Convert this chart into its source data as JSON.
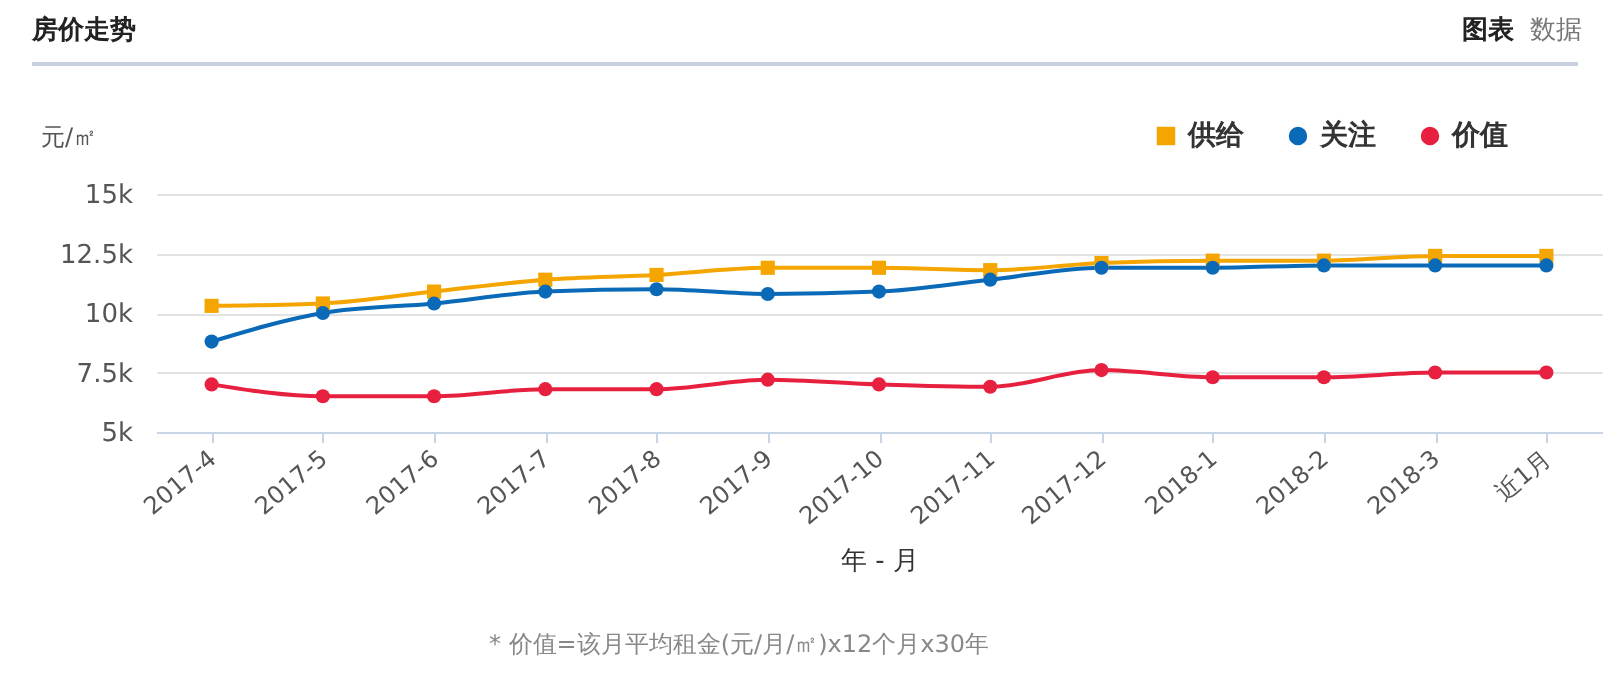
{
  "chart_data": {
    "type": "line",
    "title": "房价走势",
    "ylabel": "元/㎡",
    "xlabel": "年 - 月",
    "annotations": [
      "图表",
      "数据",
      "* 价值=该月平均租金(元/月/㎡)x12个月x30年"
    ],
    "categories": [
      "2017-4",
      "2017-5",
      "2017-6",
      "2017-7",
      "2017-8",
      "2017-9",
      "2017-10",
      "2017-11",
      "2017-12",
      "2018-1",
      "2018-2",
      "2018-3",
      "近1月"
    ],
    "series": [
      {
        "name": "供给",
        "color": "#f5a500",
        "marker": "square",
        "values": [
          10300,
          10400,
          10900,
          11400,
          11600,
          11900,
          11900,
          11800,
          12100,
          12200,
          12200,
          12400,
          12400
        ]
      },
      {
        "name": "关注",
        "color": "#0a6ab8",
        "marker": "circle",
        "values": [
          8800,
          10000,
          10400,
          10900,
          11000,
          10800,
          10900,
          11400,
          11900,
          11900,
          12000,
          12000,
          12000
        ]
      },
      {
        "name": "价值",
        "color": "#e8203f",
        "marker": "circle",
        "values": [
          7000,
          6500,
          6500,
          6800,
          6800,
          7200,
          7000,
          6900,
          7600,
          7300,
          7300,
          7500,
          7500
        ]
      }
    ],
    "ylim": [
      5000,
      15000
    ],
    "yticks": [
      {
        "value": 5000,
        "label": "5k"
      },
      {
        "value": 7500,
        "label": "7.5k"
      },
      {
        "value": 10000,
        "label": "10k"
      },
      {
        "value": 12500,
        "label": "12.5k"
      },
      {
        "value": 15000,
        "label": "15k"
      }
    ],
    "grid": "y",
    "legend": "top right",
    "line_style": "solid"
  }
}
